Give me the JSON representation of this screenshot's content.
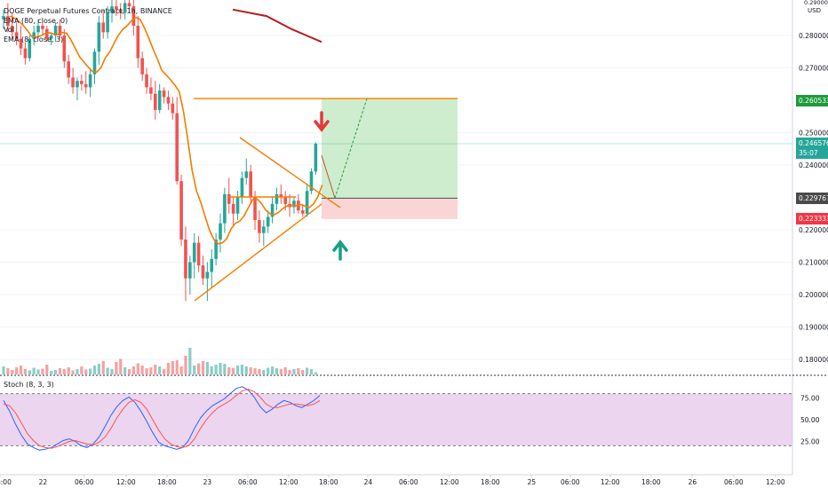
{
  "chart_data": {
    "type": "candlestick",
    "title": "DOGE Perpetual Futures Contract, 1h, BINANCE",
    "legend": [
      "EMA (80, close, 0)",
      "Vol",
      "EMA (8, close, 3)"
    ],
    "currency": "USD",
    "price_axis": {
      "ylim": [
        0.175,
        0.291
      ],
      "ticks": [
        "0.280000",
        "0.270000",
        "0.250000",
        "0.240000",
        "0.220000",
        "0.210000",
        "0.200000",
        "0.190000",
        "0.180000"
      ]
    },
    "price_tags": [
      {
        "value": "0.260533",
        "color": "#1e9b3a"
      },
      {
        "value": "0.246576",
        "sub": "35:07",
        "color": "#26a69a"
      },
      {
        "value": "0.229767",
        "color": "#4a4a4a"
      },
      {
        "value": "0.223333",
        "color": "#f23645"
      }
    ],
    "time_axis": [
      "8:00",
      "22",
      "06:00",
      "12:00",
      "18:00",
      "23",
      "06:00",
      "12:00",
      "18:00",
      "24",
      "06:00",
      "12:00",
      "18:00",
      "25",
      "06:00",
      "12:00",
      "18:00",
      "26",
      "06:00",
      "12:00"
    ],
    "candles": [
      [
        0.285,
        0.288,
        0.282,
        0.286
      ],
      [
        0.286,
        0.29,
        0.281,
        0.283
      ],
      [
        0.283,
        0.287,
        0.279,
        0.281
      ],
      [
        0.281,
        0.284,
        0.277,
        0.279
      ],
      [
        0.279,
        0.283,
        0.274,
        0.276
      ],
      [
        0.276,
        0.278,
        0.271,
        0.273
      ],
      [
        0.273,
        0.28,
        0.272,
        0.279
      ],
      [
        0.279,
        0.283,
        0.277,
        0.281
      ],
      [
        0.281,
        0.285,
        0.279,
        0.283
      ],
      [
        0.283,
        0.284,
        0.28,
        0.282
      ],
      [
        0.282,
        0.283,
        0.278,
        0.279
      ],
      [
        0.279,
        0.281,
        0.277,
        0.28
      ],
      [
        0.28,
        0.284,
        0.278,
        0.283
      ],
      [
        0.283,
        0.285,
        0.279,
        0.28
      ],
      [
        0.28,
        0.282,
        0.27,
        0.272
      ],
      [
        0.272,
        0.274,
        0.265,
        0.267
      ],
      [
        0.267,
        0.27,
        0.262,
        0.264
      ],
      [
        0.264,
        0.267,
        0.26,
        0.266
      ],
      [
        0.266,
        0.268,
        0.263,
        0.265
      ],
      [
        0.265,
        0.269,
        0.262,
        0.264
      ],
      [
        0.264,
        0.27,
        0.261,
        0.268
      ],
      [
        0.268,
        0.276,
        0.265,
        0.275
      ],
      [
        0.275,
        0.286,
        0.271,
        0.284
      ],
      [
        0.284,
        0.288,
        0.279,
        0.281
      ],
      [
        0.281,
        0.289,
        0.279,
        0.287
      ],
      [
        0.287,
        0.291,
        0.284,
        0.289
      ],
      [
        0.289,
        0.291,
        0.286,
        0.288
      ],
      [
        0.288,
        0.29,
        0.285,
        0.287
      ],
      [
        0.287,
        0.291,
        0.285,
        0.29
      ],
      [
        0.29,
        0.291,
        0.288,
        0.289
      ],
      [
        0.289,
        0.291,
        0.28,
        0.283
      ],
      [
        0.283,
        0.286,
        0.27,
        0.273
      ],
      [
        0.273,
        0.275,
        0.266,
        0.268
      ],
      [
        0.268,
        0.27,
        0.262,
        0.264
      ],
      [
        0.264,
        0.267,
        0.26,
        0.262
      ],
      [
        0.262,
        0.266,
        0.254,
        0.257
      ],
      [
        0.257,
        0.265,
        0.256,
        0.263
      ],
      [
        0.263,
        0.264,
        0.259,
        0.261
      ],
      [
        0.261,
        0.263,
        0.257,
        0.259
      ],
      [
        0.259,
        0.261,
        0.254,
        0.256
      ],
      [
        0.256,
        0.261,
        0.234,
        0.235
      ],
      [
        0.235,
        0.237,
        0.215,
        0.217
      ],
      [
        0.217,
        0.221,
        0.198,
        0.205
      ],
      [
        0.205,
        0.212,
        0.2,
        0.21
      ],
      [
        0.21,
        0.219,
        0.205,
        0.216
      ],
      [
        0.216,
        0.218,
        0.207,
        0.209
      ],
      [
        0.209,
        0.212,
        0.203,
        0.205
      ],
      [
        0.205,
        0.21,
        0.198,
        0.207
      ],
      [
        0.207,
        0.214,
        0.202,
        0.211
      ],
      [
        0.211,
        0.219,
        0.209,
        0.217
      ],
      [
        0.217,
        0.225,
        0.213,
        0.222
      ],
      [
        0.222,
        0.233,
        0.219,
        0.231
      ],
      [
        0.231,
        0.236,
        0.225,
        0.228
      ],
      [
        0.228,
        0.23,
        0.221,
        0.225
      ],
      [
        0.225,
        0.232,
        0.223,
        0.23
      ],
      [
        0.23,
        0.238,
        0.228,
        0.236
      ],
      [
        0.236,
        0.242,
        0.234,
        0.238
      ],
      [
        0.238,
        0.24,
        0.228,
        0.23
      ],
      [
        0.23,
        0.232,
        0.22,
        0.223
      ],
      [
        0.223,
        0.226,
        0.216,
        0.219
      ],
      [
        0.219,
        0.223,
        0.215,
        0.221
      ],
      [
        0.221,
        0.226,
        0.219,
        0.224
      ],
      [
        0.224,
        0.23,
        0.222,
        0.228
      ],
      [
        0.228,
        0.233,
        0.226,
        0.231
      ],
      [
        0.231,
        0.234,
        0.228,
        0.23
      ],
      [
        0.23,
        0.232,
        0.226,
        0.228
      ],
      [
        0.228,
        0.231,
        0.224,
        0.227
      ],
      [
        0.227,
        0.23,
        0.225,
        0.229
      ],
      [
        0.229,
        0.231,
        0.225,
        0.226
      ],
      [
        0.226,
        0.228,
        0.224,
        0.225
      ],
      [
        0.225,
        0.234,
        0.224,
        0.232
      ],
      [
        0.232,
        0.239,
        0.231,
        0.238
      ],
      [
        0.238,
        0.247,
        0.237,
        0.2466
      ]
    ],
    "volumes": [
      18,
      14,
      10,
      16,
      20,
      12,
      9,
      15,
      11,
      13,
      22,
      8,
      10,
      14,
      12,
      16,
      9,
      12,
      18,
      11,
      13,
      20,
      24,
      30,
      15,
      12,
      28,
      35,
      16,
      12,
      18,
      25,
      20,
      14,
      16,
      22,
      18,
      12,
      26,
      30,
      32,
      18,
      42,
      60,
      20,
      25,
      30,
      28,
      18,
      22,
      26,
      24,
      16,
      15,
      20,
      22,
      18,
      16,
      14,
      12,
      10,
      15,
      18,
      14,
      12,
      16,
      10,
      12,
      14,
      10,
      15,
      12,
      5
    ],
    "ema80": [
      [
        0.288,
        262
      ],
      [
        0.286,
        300
      ],
      [
        0.282,
        328
      ],
      [
        0.28,
        345
      ],
      [
        0.278,
        362
      ]
    ],
    "stochastic": {
      "label": "Stoch (8, 3, 3)",
      "ticks": [
        "75.00",
        "50.00",
        "25.00"
      ],
      "upper_band": 80,
      "lower_band": 20,
      "k": [
        72,
        60,
        45,
        32,
        22,
        18,
        15,
        16,
        18,
        22,
        26,
        28,
        25,
        20,
        18,
        22,
        30,
        42,
        55,
        65,
        72,
        76,
        70,
        60,
        48,
        35,
        24,
        20,
        18,
        16,
        18,
        26,
        40,
        52,
        60,
        66,
        70,
        74,
        80,
        86,
        88,
        84,
        76,
        65,
        58,
        62,
        68,
        72,
        70,
        66,
        64,
        68,
        72,
        78
      ],
      "d": [
        68,
        66,
        58,
        46,
        34,
        26,
        20,
        18,
        17,
        19,
        22,
        25,
        26,
        24,
        22,
        21,
        24,
        30,
        40,
        52,
        62,
        70,
        73,
        70,
        62,
        50,
        38,
        28,
        22,
        19,
        18,
        20,
        28,
        40,
        50,
        58,
        64,
        68,
        72,
        78,
        83,
        85,
        82,
        76,
        68,
        64,
        64,
        66,
        68,
        68,
        67,
        66,
        68,
        72
      ]
    }
  }
}
